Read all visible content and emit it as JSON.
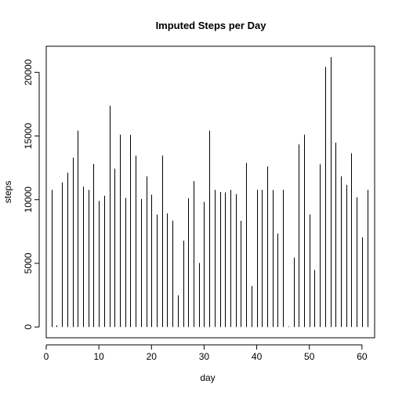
{
  "chart_data": {
    "type": "bar",
    "style": "histogram-lines",
    "title": "Imputed Steps per Day",
    "xlabel": "day",
    "ylabel": "steps",
    "xlim": [
      0,
      62.4
    ],
    "ylim": [
      -850,
      22050
    ],
    "xticks": [
      0,
      10,
      20,
      30,
      40,
      50,
      60
    ],
    "xtick_labels": [
      "0",
      "10",
      "20",
      "30",
      "40",
      "50",
      "60"
    ],
    "yticks": [
      0,
      5000,
      10000,
      15000,
      20000
    ],
    "ytick_labels": [
      "0",
      "5000",
      "10000",
      "15000",
      "20000"
    ],
    "x": [
      1,
      2,
      3,
      4,
      5,
      6,
      7,
      8,
      9,
      10,
      11,
      12,
      13,
      14,
      15,
      16,
      17,
      18,
      19,
      20,
      21,
      22,
      23,
      24,
      25,
      26,
      27,
      28,
      29,
      30,
      31,
      32,
      33,
      34,
      35,
      36,
      37,
      38,
      39,
      40,
      41,
      42,
      43,
      44,
      45,
      46,
      47,
      48,
      49,
      50,
      51,
      52,
      53,
      54,
      55,
      56,
      57,
      58,
      59,
      60,
      61
    ],
    "values": [
      10766,
      126,
      11352,
      12116,
      13294,
      15420,
      11015,
      10766,
      12811,
      9900,
      10304,
      17382,
      12426,
      15098,
      10139,
      15084,
      13452,
      10056,
      11829,
      10395,
      8821,
      13460,
      8918,
      8355,
      2492,
      6778,
      10119,
      11458,
      5018,
      9819,
      15414,
      10766,
      10600,
      10571,
      10766,
      10439,
      8334,
      12883,
      3219,
      10766,
      10766,
      12608,
      10765,
      7336,
      10766,
      41,
      5441,
      14339,
      15110,
      8841,
      4472,
      12787,
      20427,
      21194,
      14478,
      11834,
      11162,
      13646,
      10183,
      7047,
      10766
    ],
    "color": "#000000",
    "grid": false,
    "legend": "none"
  }
}
